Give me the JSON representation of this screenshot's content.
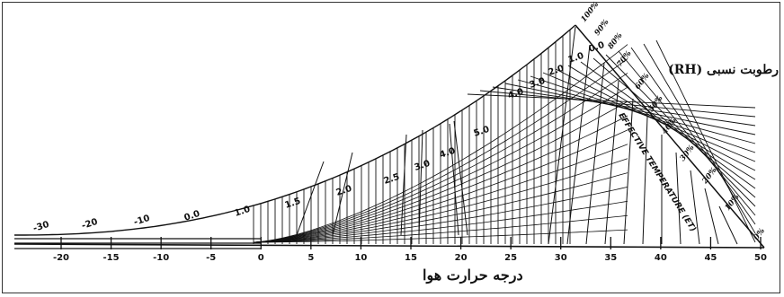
{
  "rh_axis_title": "رطوبت نسبی (RH)",
  "x_axis_title": "درجه حرارت هوا",
  "et_caption": "EFFECTIVE TEMPERATURE (ET)",
  "chart_data": {
    "type": "line",
    "xlabel": "درجه حرارت هوا",
    "x_ticks": [
      "-20",
      "-15",
      "-10",
      "-5",
      "0",
      "5",
      "10",
      "15",
      "20",
      "25",
      "30",
      "35",
      "40",
      "45",
      "50"
    ],
    "xlim": [
      -20,
      50
    ],
    "et_labels": [
      "-30",
      "-20",
      "-10",
      "0.0",
      "1.0",
      "1.5",
      "2.0",
      "2.5",
      "3.0",
      "4.0",
      "5.0",
      "4.0",
      "3.0",
      "2.0",
      "1.0",
      "0.0"
    ],
    "rh_labels": [
      "100%",
      "90%",
      "80%",
      "70%",
      "60%",
      "50%",
      "40%",
      "30%",
      "20%",
      "10%",
      "0%"
    ],
    "rh_values": [
      100,
      90,
      80,
      70,
      60,
      50,
      40,
      30,
      20,
      10,
      0
    ]
  }
}
